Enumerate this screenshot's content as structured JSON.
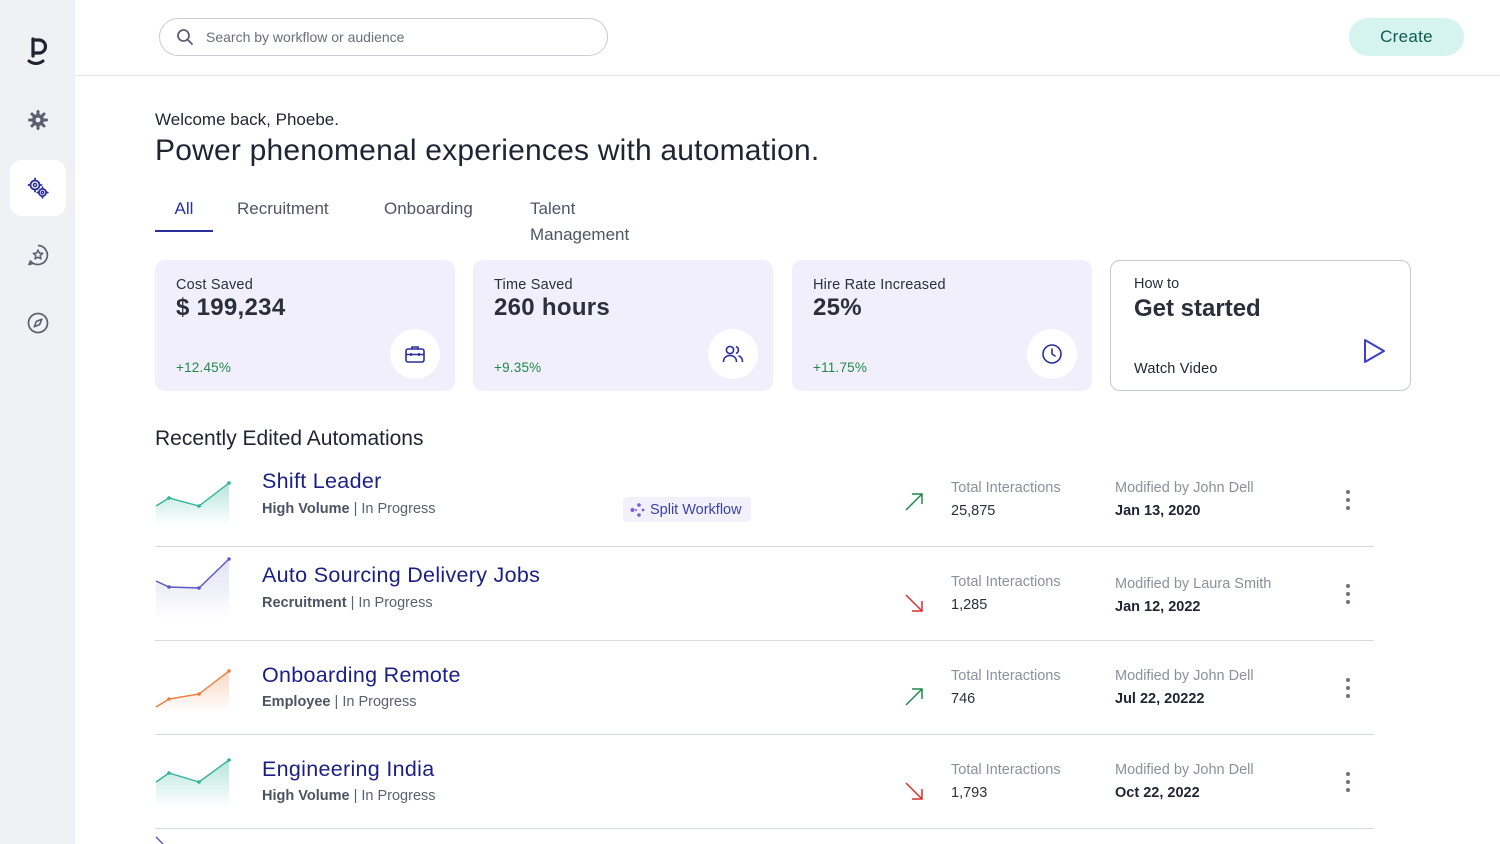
{
  "header": {
    "search_placeholder": "Search by workflow or audience",
    "create_label": "Create"
  },
  "sidebar": {
    "items": [
      {
        "icon": "gear-icon",
        "active": false
      },
      {
        "icon": "automation-gears-icon",
        "active": true
      },
      {
        "icon": "chat-star-icon",
        "active": false
      },
      {
        "icon": "compass-icon",
        "active": false
      }
    ]
  },
  "main": {
    "welcome": "Welcome back, Phoebe.",
    "headline": "Power phenomenal experiences with automation.",
    "tabs": [
      {
        "label": "All",
        "active": true
      },
      {
        "label": "Recruitment",
        "active": false
      },
      {
        "label": "Onboarding",
        "active": false
      },
      {
        "label": "Talent Management",
        "active": false
      }
    ]
  },
  "stats": [
    {
      "label": "Cost Saved",
      "value": "$ 199,234",
      "delta": "+12.45%",
      "icon": "briefcase-icon"
    },
    {
      "label": "Time Saved",
      "value": "260 hours",
      "delta": "+9.35%",
      "icon": "users-icon"
    },
    {
      "label": "Hire Rate Increased",
      "value": "25%",
      "delta": "+11.75%",
      "icon": "clock-icon"
    }
  ],
  "howto": {
    "label": "How to",
    "title": "Get started",
    "link": "Watch Video"
  },
  "recent": {
    "title": "Recently Edited Automations",
    "rows": [
      {
        "name": "Shift Leader",
        "category": "High Volume",
        "status": "| In Progress",
        "tag": "Split Workflow",
        "trend": "up",
        "interactions_label": "Total Interactions",
        "interactions": "25,875",
        "modified_by": "Modified by John Dell",
        "modified_date": "Jan 13, 2020",
        "color": "#2fb39a"
      },
      {
        "name": "Auto Sourcing Delivery Jobs",
        "category": "Recruitment",
        "status": "| In Progress",
        "tag": "",
        "trend": "down",
        "interactions_label": "Total Interactions",
        "interactions": "1,285",
        "modified_by": "Modified by Laura Smith",
        "modified_date": "Jan 12, 2022",
        "color": "#5a57c7"
      },
      {
        "name": "Onboarding Remote",
        "category": "Employee",
        "status": "| In Progress",
        "tag": "",
        "trend": "up",
        "interactions_label": "Total Interactions",
        "interactions": "746",
        "modified_by": "Modified by John Dell",
        "modified_date": "Jul 22, 20222",
        "color": "#ef7b3a"
      },
      {
        "name": "Engineering India",
        "category": "High Volume",
        "status": "| In Progress",
        "tag": "",
        "trend": "down",
        "interactions_label": "Total Interactions",
        "interactions": "1,793",
        "modified_by": "Modified by John Dell",
        "modified_date": "Oct 22, 2022",
        "color": "#2fb39a"
      }
    ]
  },
  "colors": {
    "accent": "#2a2f9c",
    "stat_bg": "#f1effc",
    "positive": "#1f8a4a",
    "trend_up": "#1f8a4a",
    "trend_down": "#d9302c",
    "create_bg": "#d5f3ef"
  }
}
